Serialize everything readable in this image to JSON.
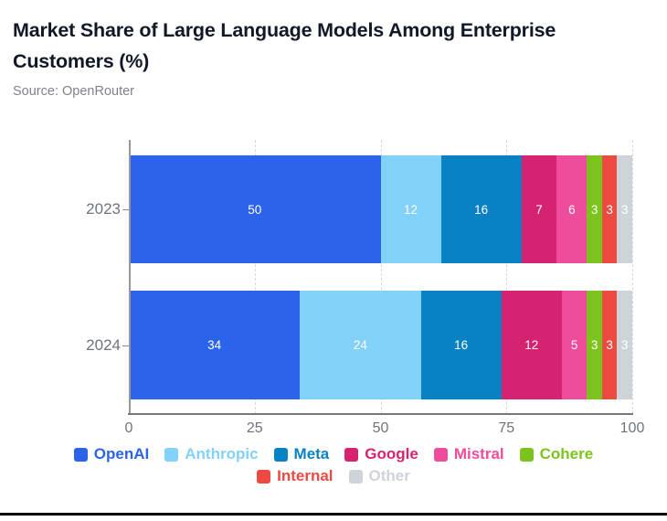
{
  "title": "Market Share of Large Language Models Among Enterprise Customers (%)",
  "source": "Source: OpenRouter",
  "styles": {
    "title_color": "#111827",
    "source_color": "#7d838d",
    "tick_label_color": "#6d737d",
    "category_label_color": "#6d737d",
    "gridline_color": "#d8d8d8",
    "axis_color": "#787878",
    "value_label_color": "#ffffff",
    "divider_color": "#000000"
  },
  "chart_data": {
    "type": "bar",
    "orientation": "horizontal",
    "stacked": true,
    "title": "Market Share of Large Language Models Among Enterprise Customers (%)",
    "subtitle": "Source: OpenRouter",
    "categories": [
      "2023",
      "2024"
    ],
    "series": [
      {
        "name": "OpenAI",
        "color": "#2b64ea",
        "values": [
          50,
          34
        ]
      },
      {
        "name": "Anthropic",
        "color": "#82d1f8",
        "values": [
          12,
          24
        ]
      },
      {
        "name": "Meta",
        "color": "#0982c3",
        "values": [
          16,
          16
        ]
      },
      {
        "name": "Google",
        "color": "#d62371",
        "values": [
          7,
          12
        ]
      },
      {
        "name": "Mistral",
        "color": "#ee4c9d",
        "values": [
          6,
          5
        ]
      },
      {
        "name": "Cohere",
        "color": "#7dc31d",
        "values": [
          3,
          3
        ]
      },
      {
        "name": "Internal",
        "color": "#ed4a42",
        "values": [
          3,
          3
        ]
      },
      {
        "name": "Other",
        "color": "#ced3da",
        "values": [
          3,
          3
        ]
      }
    ],
    "xlim": [
      0,
      100
    ],
    "xticks": [
      "0",
      "25",
      "50",
      "75",
      "100"
    ],
    "grid": "dashed vertical gridlines at 25, 50, 75, 100",
    "legend_position": "bottom",
    "legend_rows": [
      [
        "OpenAI",
        "Anthropic",
        "Meta",
        "Google",
        "Mistral",
        "Cohere"
      ],
      [
        "Internal",
        "Other"
      ]
    ]
  }
}
